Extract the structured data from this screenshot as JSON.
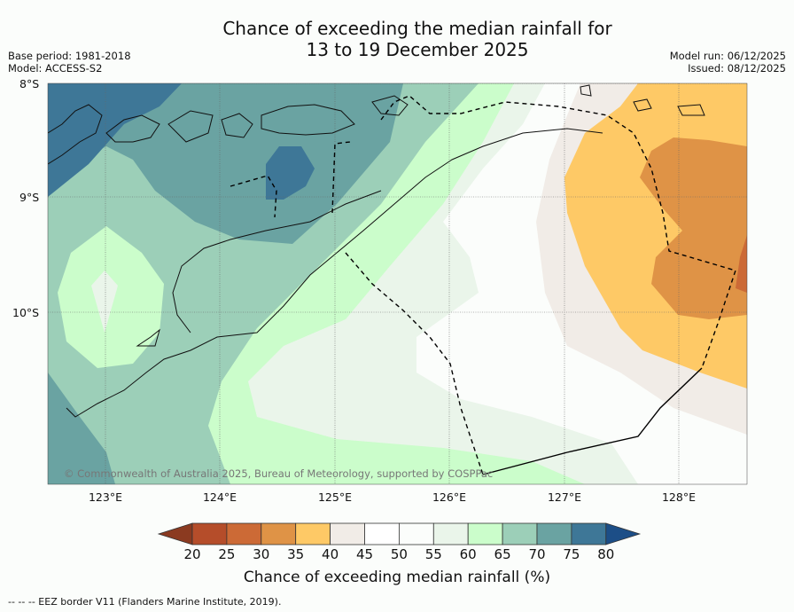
{
  "title": {
    "line1": "Chance of exceeding the median rainfall for",
    "line2": "13 to 19 December 2025"
  },
  "meta_left": {
    "base_period": "Base period: 1981-2018",
    "model": "Model: ACCESS-S2"
  },
  "meta_right": {
    "model_run": "Model run: 06/12/2025",
    "issued": "Issued: 08/12/2025"
  },
  "lat_labels": [
    "8°S",
    "9°S",
    "10°S"
  ],
  "lon_labels": [
    "123°E",
    "124°E",
    "125°E",
    "126°E",
    "127°E",
    "128°E"
  ],
  "copyright": "© Commonwealth of Australia 2025, Bureau of Meteorology, supported by COSPPac",
  "colorbar": {
    "ticks": [
      "20",
      "25",
      "30",
      "35",
      "40",
      "45",
      "50",
      "55",
      "60",
      "65",
      "70",
      "75",
      "80"
    ],
    "colors": [
      "#8b3a20",
      "#b54d2a",
      "#cc6a36",
      "#df9346",
      "#fec966",
      "#f1ece7",
      "#ffffff",
      "#fbfdfb",
      "#eaf5ea",
      "#cbfdcb",
      "#9ccfb8",
      "#6aa3a2",
      "#3e7797",
      "#1c4e87"
    ],
    "title": "Chance of exceeding median rainfall (%)"
  },
  "legend_note": "-- --  -- EEZ border V11 (Flanders Marine Institute, 2019)."
}
